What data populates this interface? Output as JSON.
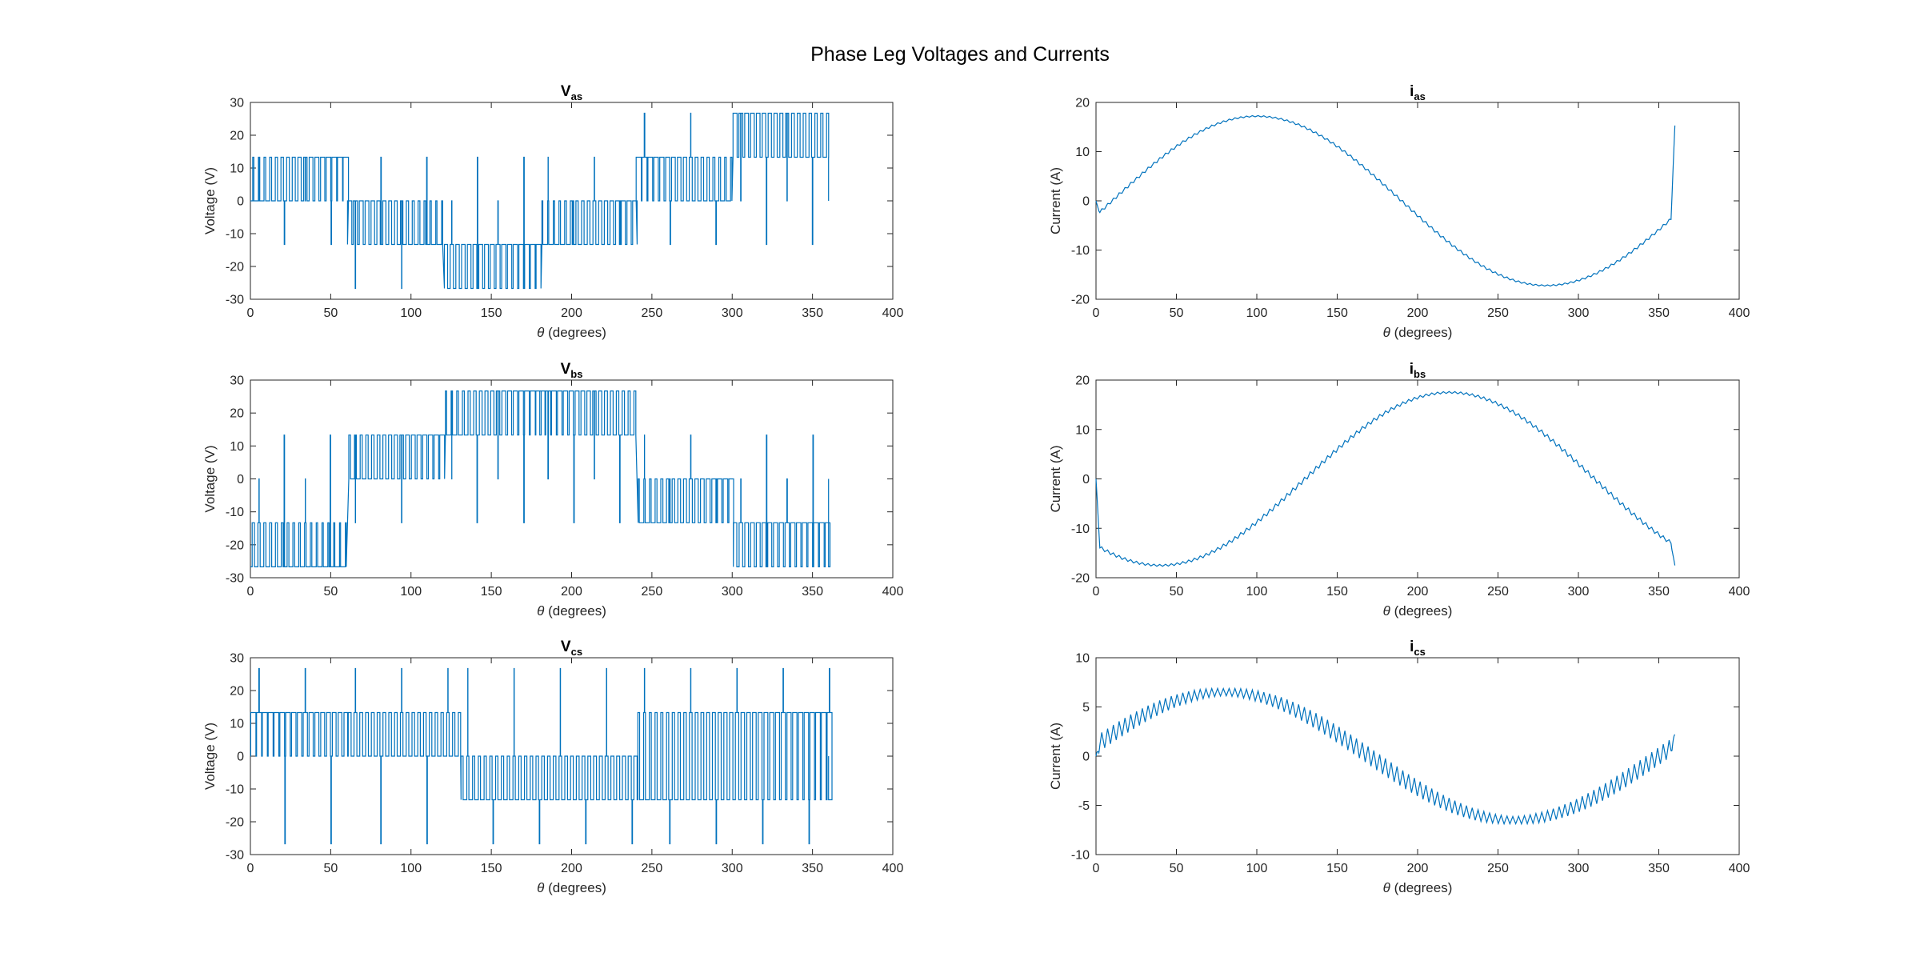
{
  "figure": {
    "title": "Phase Leg Voltages and Currents"
  },
  "style": {
    "line_color": "#0072BD",
    "axis_color": "#262626",
    "background": "#ffffff"
  },
  "chart_data": [
    {
      "id": "vas",
      "type": "line",
      "title_main": "V",
      "title_sub": "as",
      "xlabel_symbol": "θ",
      "xlabel_text": " (degrees)",
      "ylabel": "Voltage (V)",
      "xlim": [
        0,
        400
      ],
      "ylim": [
        -30,
        30
      ],
      "xticks": [
        0,
        50,
        100,
        150,
        200,
        250,
        300,
        350,
        400
      ],
      "yticks": [
        -30,
        -20,
        -10,
        0,
        10,
        20,
        30
      ],
      "grid": false,
      "x_end": 360,
      "description_levels": "PWM phase-leg voltage stepping among -26.7, -13.3, 0, 13.3, 26.7 V",
      "segments": [
        {
          "x": [
            0,
            60
          ],
          "low": 0,
          "high": 13.3,
          "duty": [
            0.2,
            0.95
          ],
          "spikes": [
            0,
            -13.3
          ]
        },
        {
          "x": [
            60,
            120
          ],
          "low": -13.3,
          "high": 0,
          "duty": [
            0.75,
            0.15
          ],
          "spikes": [
            -26.7,
            13.3
          ]
        },
        {
          "x": [
            120,
            180
          ],
          "low": -26.7,
          "high": -13.3,
          "duty": [
            0.55,
            0.85
          ],
          "spikes": [
            0,
            13.3
          ]
        },
        {
          "x": [
            180,
            240
          ],
          "low": -13.3,
          "high": 0,
          "duty": [
            0.15,
            0.8
          ],
          "spikes": [
            13.3,
            0
          ]
        },
        {
          "x": [
            240,
            300
          ],
          "low": 0,
          "high": 13.3,
          "duty": [
            0.9,
            0.2
          ],
          "spikes": [
            26.7,
            -13.3
          ]
        },
        {
          "x": [
            300,
            360
          ],
          "low": 13.3,
          "high": 26.7,
          "duty": [
            0.7,
            0.35
          ],
          "spikes": [
            0,
            -13.3
          ]
        }
      ]
    },
    {
      "id": "ias",
      "type": "line",
      "title_main": "i",
      "title_sub": "as",
      "xlabel_symbol": "θ",
      "xlabel_text": " (degrees)",
      "ylabel": "Current (A)",
      "xlim": [
        0,
        400
      ],
      "ylim": [
        -20,
        20
      ],
      "xticks": [
        0,
        50,
        100,
        150,
        200,
        250,
        300,
        350,
        400
      ],
      "yticks": [
        -20,
        -10,
        0,
        10,
        20
      ],
      "grid": false,
      "x_end": 360,
      "amplitude": 17.2,
      "phase_deg": -10,
      "ripple": 0.6,
      "start_value": 0,
      "end_value": 15.3
    },
    {
      "id": "vbs",
      "type": "line",
      "title_main": "V",
      "title_sub": "bs",
      "xlabel_symbol": "θ",
      "xlabel_text": " (degrees)",
      "ylabel": "Voltage (V)",
      "xlim": [
        0,
        400
      ],
      "ylim": [
        -30,
        30
      ],
      "xticks": [
        0,
        50,
        100,
        150,
        200,
        250,
        300,
        350,
        400
      ],
      "yticks": [
        -30,
        -20,
        -10,
        0,
        10,
        20,
        30
      ],
      "grid": false,
      "x_end": 360,
      "segments": [
        {
          "x": [
            0,
            60
          ],
          "low": -26.7,
          "high": -13.3,
          "duty": [
            0.4,
            0.15
          ],
          "spikes": [
            0,
            13.3
          ]
        },
        {
          "x": [
            60,
            120
          ],
          "low": 0,
          "high": 13.3,
          "duty": [
            0.3,
            0.85
          ],
          "spikes": [
            -13.3,
            0
          ]
        },
        {
          "x": [
            120,
            180
          ],
          "low": 13.3,
          "high": 26.7,
          "duty": [
            0.2,
            0.95
          ],
          "spikes": [
            0,
            -13.3
          ]
        },
        {
          "x": [
            180,
            240
          ],
          "low": 13.3,
          "high": 26.7,
          "duty": [
            0.9,
            0.3
          ],
          "spikes": [
            0,
            -13.3
          ]
        },
        {
          "x": [
            240,
            300
          ],
          "low": -13.3,
          "high": 0,
          "duty": [
            0.2,
            0.85
          ],
          "spikes": [
            13.3,
            0
          ]
        },
        {
          "x": [
            300,
            360
          ],
          "low": -26.7,
          "high": -13.3,
          "duty": [
            0.6,
            0.85
          ],
          "spikes": [
            0,
            13.3
          ]
        }
      ]
    },
    {
      "id": "ibs",
      "type": "line",
      "title_main": "i",
      "title_sub": "bs",
      "xlabel_symbol": "θ",
      "xlabel_text": " (degrees)",
      "ylabel": "Current (A)",
      "xlim": [
        0,
        400
      ],
      "ylim": [
        -20,
        20
      ],
      "xticks": [
        0,
        50,
        100,
        150,
        200,
        250,
        300,
        350,
        400
      ],
      "yticks": [
        -20,
        -10,
        0,
        10,
        20
      ],
      "grid": false,
      "x_end": 360,
      "amplitude": 17.5,
      "phase_deg": -130,
      "ripple": 0.9,
      "start_value": 0,
      "end_value": -17.5
    },
    {
      "id": "vcs",
      "type": "line",
      "title_main": "V",
      "title_sub": "cs",
      "xlabel_symbol": "θ",
      "xlabel_text": " (degrees)",
      "ylabel": "Voltage (V)",
      "xlim": [
        0,
        400
      ],
      "ylim": [
        -30,
        30
      ],
      "xticks": [
        0,
        50,
        100,
        150,
        200,
        250,
        300,
        350,
        400
      ],
      "yticks": [
        -30,
        -20,
        -10,
        0,
        10,
        20,
        30
      ],
      "grid": false,
      "x_end": 360,
      "segments": [
        {
          "x": [
            0,
            60
          ],
          "low": 0,
          "high": 13.3,
          "duty": [
            0.9,
            0.6
          ],
          "spikes": [
            26.7,
            -26.7
          ]
        },
        {
          "x": [
            60,
            130
          ],
          "low": 0,
          "high": 13.3,
          "duty": [
            0.5,
            0.4
          ],
          "spikes": [
            26.7,
            -26.7
          ]
        },
        {
          "x": [
            130,
            240
          ],
          "low": -13.3,
          "high": 0,
          "duty": [
            0.35,
            0.55
          ],
          "spikes": [
            26.7,
            -26.7
          ]
        },
        {
          "x": [
            240,
            360
          ],
          "low": -13.3,
          "high": 13.3,
          "duty": [
            0.3,
            0.85
          ],
          "spikes": [
            26.7,
            -26.7
          ]
        }
      ]
    },
    {
      "id": "ics",
      "type": "line",
      "title_main": "i",
      "title_sub": "cs",
      "xlabel_symbol": "θ",
      "xlabel_text": " (degrees)",
      "ylabel": "Current (A)",
      "xlim": [
        0,
        400
      ],
      "ylim": [
        -10,
        10
      ],
      "xticks": [
        0,
        50,
        100,
        150,
        200,
        250,
        300,
        350,
        400
      ],
      "yticks": [
        -10,
        -5,
        0,
        5,
        10
      ],
      "grid": false,
      "x_end": 360,
      "amplitude": 6.5,
      "phase_deg": 10,
      "ripple": 1.8,
      "start_value": 0,
      "end_value": 2.2
    }
  ]
}
